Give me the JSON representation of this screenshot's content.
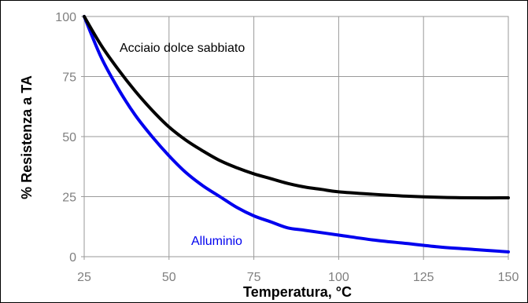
{
  "chart_data": {
    "type": "line",
    "title": "",
    "xlabel": "Temperatura, °C",
    "ylabel": "% Resistenza a TA",
    "xlim": [
      25,
      150
    ],
    "ylim": [
      0,
      100
    ],
    "xticks": [
      25,
      50,
      75,
      100,
      125,
      150
    ],
    "yticks": [
      0,
      25,
      50,
      75,
      100
    ],
    "grid": true,
    "legend": "none",
    "series": [
      {
        "name": "Acciaio dolce sabbiato",
        "color": "#000000",
        "x": [
          25,
          30,
          35,
          40,
          45,
          50,
          55,
          60,
          65,
          70,
          75,
          80,
          85,
          90,
          95,
          100,
          110,
          120,
          130,
          140,
          150
        ],
        "y": [
          100,
          88,
          78,
          69,
          61,
          54,
          48.5,
          44,
          40,
          37,
          34.5,
          32.5,
          30.5,
          29,
          28,
          27,
          26,
          25.2,
          24.7,
          24.5,
          24.5
        ]
      },
      {
        "name": "Alluminio",
        "color": "#0000ee",
        "x": [
          25,
          30,
          35,
          40,
          45,
          50,
          55,
          60,
          65,
          70,
          75,
          80,
          85,
          90,
          100,
          110,
          120,
          130,
          140,
          150
        ],
        "y": [
          100,
          83,
          70,
          59,
          50,
          42,
          35,
          29.5,
          25,
          20.5,
          17,
          14.5,
          12,
          11,
          9,
          7,
          5.5,
          4,
          3,
          2
        ]
      }
    ]
  }
}
